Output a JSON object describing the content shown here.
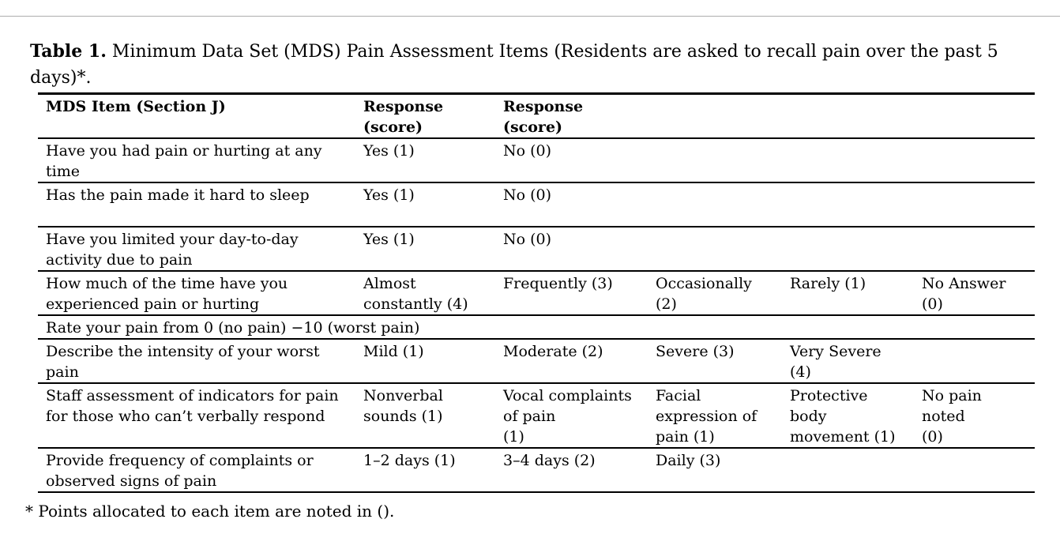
{
  "caption": {
    "label": "Table 1.",
    "text": "Minimum Data Set (MDS) Pain Assessment Items (Residents are asked to recall pain over the past 5\ndays)*."
  },
  "table": {
    "header": [
      "MDS Item (Section J)",
      "Response\n(score)",
      "Response\n(score)",
      "",
      "",
      ""
    ],
    "rows": [
      {
        "cells": [
          "Have you had pain or hurting at any\ntime",
          "Yes (1)",
          "No (0)",
          "",
          "",
          ""
        ]
      },
      {
        "cells": [
          "Has the pain made it hard to sleep",
          "Yes (1)",
          "No (0)",
          "",
          "",
          ""
        ]
      },
      {
        "cells": [
          "Have you limited your day-to-day\nactivity due to pain",
          "Yes (1)",
          "No (0)",
          "",
          "",
          ""
        ]
      },
      {
        "cells": [
          "How much of the time have you\nexperienced pain or hurting",
          "Almost\nconstantly (4)",
          "Frequently (3)",
          "Occasionally\n(2)",
          "Rarely (1)",
          "No Answer\n(0)"
        ]
      },
      {
        "span": "Rate your pain from 0 (no pain) −10 (worst pain)"
      },
      {
        "cells": [
          "Describe the intensity of your worst\npain",
          "Mild (1)",
          "Moderate (2)",
          "Severe (3)",
          "Very Severe\n(4)",
          ""
        ]
      },
      {
        "cells": [
          "Staff assessment of indicators for pain\nfor those who can’t verbally respond",
          "Nonverbal\nsounds (1)",
          "Vocal complaints\nof pain\n(1)",
          "Facial\nexpression of\npain (1)",
          "Protective\nbody\nmovement (1)",
          "No pain\nnoted\n(0)"
        ]
      },
      {
        "cells": [
          "Provide frequency of complaints or\nobserved signs of pain",
          "1–2 days (1)",
          "3–4 days (2)",
          "Daily (3)",
          "",
          ""
        ]
      }
    ]
  },
  "footnote": "* Points allocated to each item are noted in ()."
}
